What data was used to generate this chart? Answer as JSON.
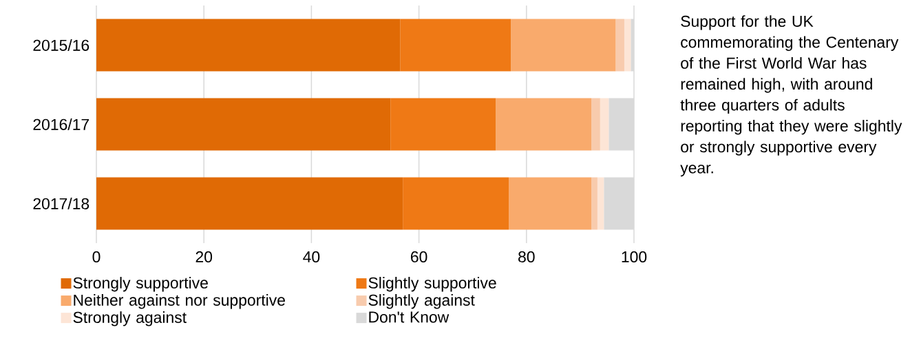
{
  "chart_data": {
    "type": "bar",
    "orientation": "horizontal",
    "stacked": true,
    "categories": [
      "2015/16",
      "2016/17",
      "2017/18"
    ],
    "series": [
      {
        "name": "Strongly supportive",
        "color": "#e06a05",
        "values": [
          56.5,
          54.7,
          57.0
        ]
      },
      {
        "name": "Slightly supportive",
        "color": "#ef7915",
        "values": [
          20.6,
          19.6,
          19.7
        ]
      },
      {
        "name": "Neither against nor supportive",
        "color": "#f9aa6c",
        "values": [
          19.5,
          17.8,
          15.4
        ]
      },
      {
        "name": "Slightly against",
        "color": "#f8cbad",
        "values": [
          1.6,
          1.6,
          1.1
        ]
      },
      {
        "name": "Strongly against",
        "color": "#fde5d6",
        "values": [
          1.2,
          1.6,
          1.2
        ]
      },
      {
        "name": "Don't Know",
        "color": "#d9d9d9",
        "values": [
          0.6,
          4.7,
          5.6
        ]
      }
    ],
    "xlim": [
      0,
      100
    ],
    "xticks": [
      0,
      20,
      40,
      60,
      80,
      100
    ],
    "grid": "x",
    "legend": "bottom",
    "annotations": [
      "Support for the UK commemorating the Centenary of the First World War has remained high, with around three quarters of adults reporting that they were slightly or strongly supportive every year."
    ]
  }
}
